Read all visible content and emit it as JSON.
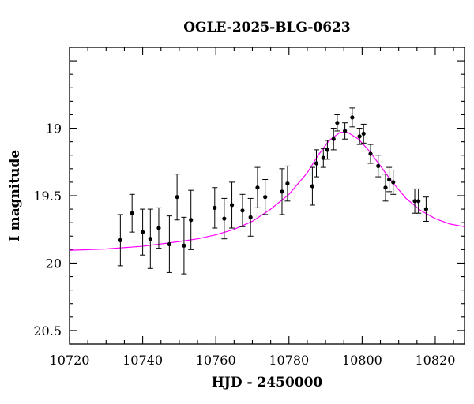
{
  "chart_data": {
    "type": "scatter",
    "title": "OGLE-2025-BLG-0623",
    "xlabel": "HJD - 2450000",
    "ylabel": "I magnitude",
    "xlim": [
      10720,
      10828
    ],
    "ylim": [
      20.6,
      18.4
    ],
    "y_inverted": true,
    "x_ticks": [
      10720,
      10740,
      10760,
      10780,
      10800,
      10820
    ],
    "y_ticks": [
      19,
      19.5,
      20,
      20.5
    ],
    "x_tick_labels": [
      "10720",
      "10740",
      "10760",
      "10780",
      "10800",
      "10820"
    ],
    "y_tick_labels": [
      "19",
      "19.5",
      "20",
      "20.5"
    ],
    "points_color": "#000000",
    "model_color": "#ff00ff",
    "points": [
      {
        "x": 10733.9,
        "y": 19.83,
        "err": 0.19
      },
      {
        "x": 10737.1,
        "y": 19.63,
        "err": 0.14
      },
      {
        "x": 10740.0,
        "y": 19.77,
        "err": 0.17
      },
      {
        "x": 10742.1,
        "y": 19.82,
        "err": 0.22
      },
      {
        "x": 10744.4,
        "y": 19.74,
        "err": 0.15
      },
      {
        "x": 10747.3,
        "y": 19.86,
        "err": 0.21
      },
      {
        "x": 10749.4,
        "y": 19.51,
        "err": 0.17
      },
      {
        "x": 10751.3,
        "y": 19.87,
        "err": 0.21
      },
      {
        "x": 10753.2,
        "y": 19.68,
        "err": 0.22
      },
      {
        "x": 10759.7,
        "y": 19.59,
        "err": 0.15
      },
      {
        "x": 10762.3,
        "y": 19.67,
        "err": 0.15
      },
      {
        "x": 10764.4,
        "y": 19.57,
        "err": 0.17
      },
      {
        "x": 10767.3,
        "y": 19.61,
        "err": 0.12
      },
      {
        "x": 10769.5,
        "y": 19.66,
        "err": 0.14
      },
      {
        "x": 10771.4,
        "y": 19.44,
        "err": 0.15
      },
      {
        "x": 10773.5,
        "y": 19.51,
        "err": 0.13
      },
      {
        "x": 10778.1,
        "y": 19.47,
        "err": 0.17
      },
      {
        "x": 10779.6,
        "y": 19.41,
        "err": 0.13
      },
      {
        "x": 10786.4,
        "y": 19.43,
        "err": 0.14
      },
      {
        "x": 10787.5,
        "y": 19.26,
        "err": 0.1
      },
      {
        "x": 10789.4,
        "y": 19.22,
        "err": 0.07
      },
      {
        "x": 10790.5,
        "y": 19.16,
        "err": 0.07
      },
      {
        "x": 10792.2,
        "y": 19.08,
        "err": 0.08
      },
      {
        "x": 10793.2,
        "y": 18.96,
        "err": 0.06
      },
      {
        "x": 10795.3,
        "y": 19.02,
        "err": 0.06
      },
      {
        "x": 10797.3,
        "y": 18.92,
        "err": 0.07
      },
      {
        "x": 10799.3,
        "y": 19.06,
        "err": 0.06
      },
      {
        "x": 10800.4,
        "y": 19.04,
        "err": 0.07
      },
      {
        "x": 10802.3,
        "y": 19.19,
        "err": 0.07
      },
      {
        "x": 10804.4,
        "y": 19.28,
        "err": 0.08
      },
      {
        "x": 10806.4,
        "y": 19.44,
        "err": 0.1
      },
      {
        "x": 10807.4,
        "y": 19.38,
        "err": 0.09
      },
      {
        "x": 10808.5,
        "y": 19.4,
        "err": 0.09
      },
      {
        "x": 10814.4,
        "y": 19.54,
        "err": 0.09
      },
      {
        "x": 10815.4,
        "y": 19.54,
        "err": 0.09
      },
      {
        "x": 10817.5,
        "y": 19.6,
        "err": 0.09
      }
    ],
    "model": [
      {
        "x": 10720,
        "y": 19.905
      },
      {
        "x": 10730,
        "y": 19.895
      },
      {
        "x": 10740,
        "y": 19.875
      },
      {
        "x": 10750,
        "y": 19.84
      },
      {
        "x": 10755,
        "y": 19.82
      },
      {
        "x": 10760,
        "y": 19.79
      },
      {
        "x": 10765,
        "y": 19.75
      },
      {
        "x": 10770,
        "y": 19.69
      },
      {
        "x": 10775,
        "y": 19.6
      },
      {
        "x": 10780,
        "y": 19.49
      },
      {
        "x": 10785,
        "y": 19.33
      },
      {
        "x": 10788,
        "y": 19.2
      },
      {
        "x": 10791,
        "y": 19.09
      },
      {
        "x": 10794,
        "y": 19.03
      },
      {
        "x": 10796,
        "y": 19.03
      },
      {
        "x": 10799,
        "y": 19.08
      },
      {
        "x": 10802,
        "y": 19.17
      },
      {
        "x": 10805,
        "y": 19.28
      },
      {
        "x": 10808,
        "y": 19.39
      },
      {
        "x": 10812,
        "y": 19.52
      },
      {
        "x": 10816,
        "y": 19.61
      },
      {
        "x": 10820,
        "y": 19.67
      },
      {
        "x": 10824,
        "y": 19.71
      },
      {
        "x": 10828,
        "y": 19.73
      }
    ]
  }
}
